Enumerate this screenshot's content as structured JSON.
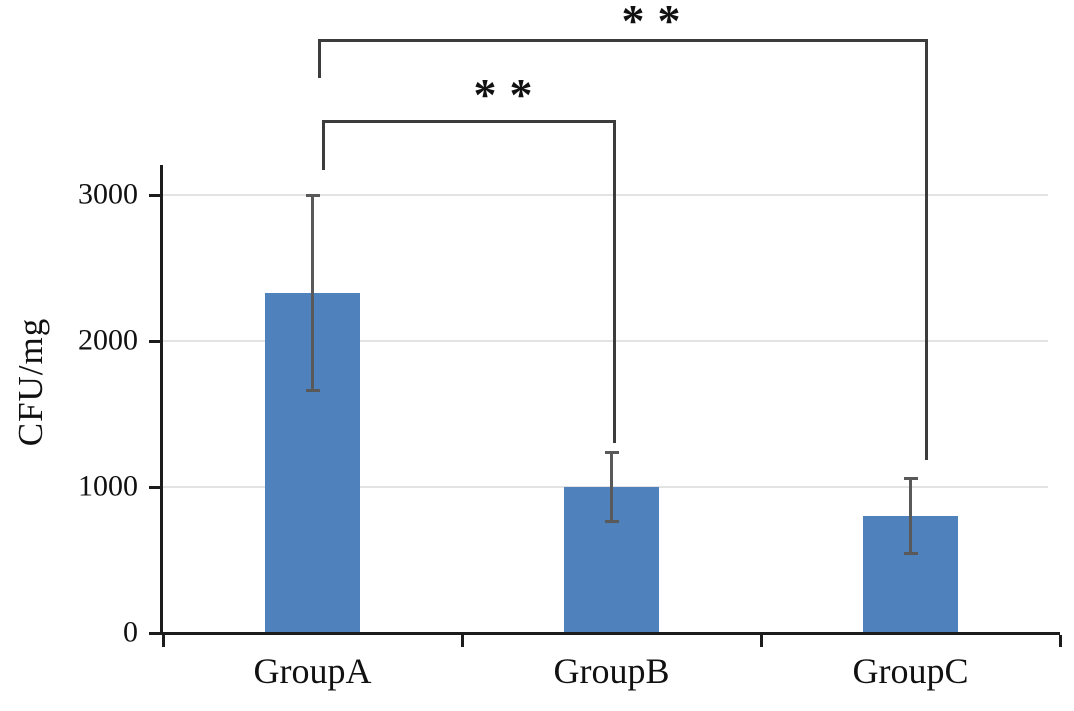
{
  "chart_data": {
    "type": "bar",
    "title": "",
    "ylabel": "CFU/mg",
    "xlabel": "",
    "categories": [
      "GroupA",
      "GroupB",
      "GroupC"
    ],
    "values": [
      2330,
      1000,
      800
    ],
    "errors": [
      670,
      235,
      255
    ],
    "yticks": [
      0,
      1000,
      2000,
      3000
    ],
    "ylim": [
      0,
      3205
    ],
    "grid": "horizontal-light",
    "legend": "none",
    "bar_color": "#4F81BD",
    "error_bar_color": "#595959",
    "axis_color": "#1c1c1c",
    "grid_color": "#e3e3e3",
    "bracket_color": "#3c3c3c",
    "text_color": "#111111",
    "annotations": [
      {
        "label": "**",
        "between": [
          "GroupA",
          "GroupB"
        ]
      },
      {
        "label": "**",
        "between": [
          "GroupA",
          "GroupC"
        ]
      }
    ]
  }
}
